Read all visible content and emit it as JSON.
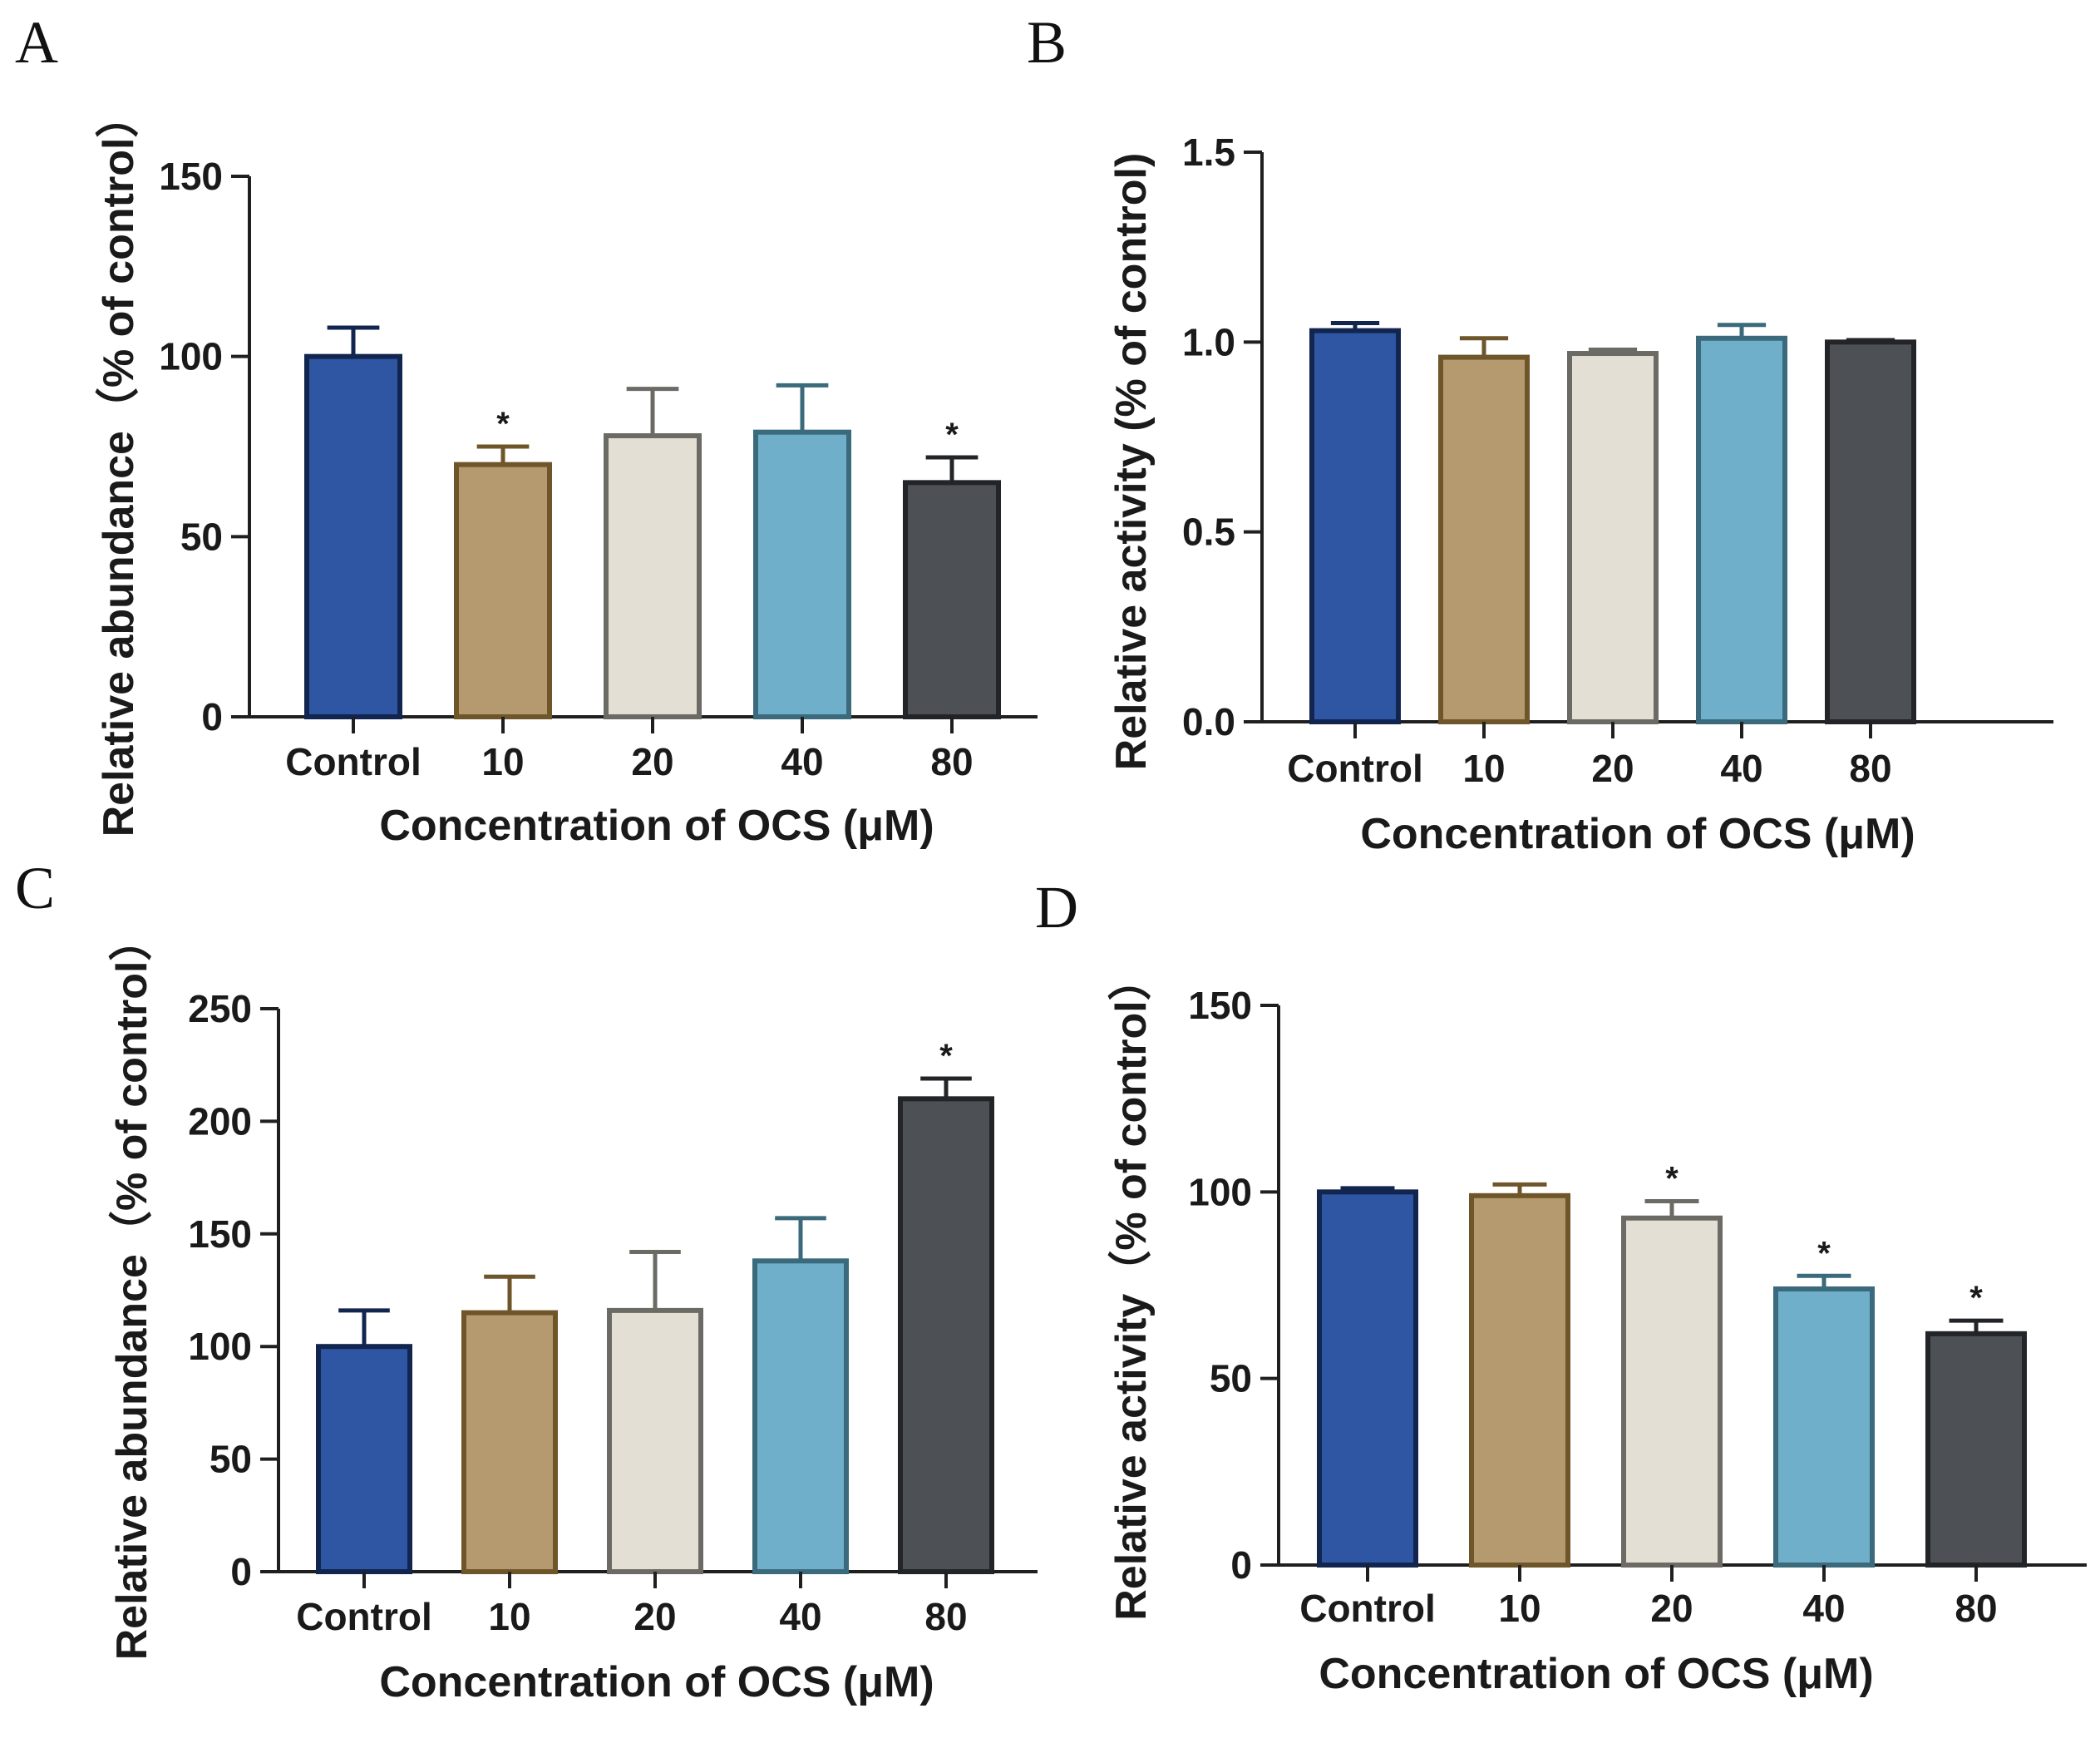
{
  "figure_colors": {
    "fills": [
      "#2f56a3",
      "#b59a6f",
      "#e3dfd5",
      "#6fafc9",
      "#4d5156"
    ],
    "strokes": [
      "#12254f",
      "#6e552a",
      "#6c6a64",
      "#3a6a7b",
      "#222427"
    ]
  },
  "chart_data": [
    {
      "panel": "A",
      "type": "bar",
      "categories": [
        "Control",
        "10",
        "20",
        "40",
        "80"
      ],
      "values": [
        100,
        70,
        78,
        79,
        65
      ],
      "errors": [
        8,
        5,
        13,
        13,
        7
      ],
      "significance": [
        "",
        "*",
        "",
        "",
        "*"
      ],
      "ylim": [
        0,
        150
      ],
      "yticks": [
        0,
        50,
        100,
        150
      ],
      "ytick_labels": [
        "0",
        "50",
        "100",
        "150"
      ],
      "xlabel": "Concentration of OCS (μM)",
      "ylabel": "Relative abundance（% of control）"
    },
    {
      "panel": "B",
      "type": "bar",
      "categories": [
        "Control",
        "10",
        "20",
        "40",
        "80"
      ],
      "values": [
        1.03,
        0.96,
        0.97,
        1.01,
        1.0
      ],
      "errors": [
        0.02,
        0.05,
        0.01,
        0.035,
        0.005
      ],
      "significance": [
        "",
        "",
        "",
        "",
        ""
      ],
      "ylim": [
        0,
        1.5
      ],
      "yticks": [
        0,
        0.5,
        1.0,
        1.5
      ],
      "ytick_labels": [
        "0.0",
        "0.5",
        "1.0",
        "1.5"
      ],
      "xlabel": "Concentration of OCS (μM)",
      "ylabel": "Relative activity (% of control)"
    },
    {
      "panel": "C",
      "type": "bar",
      "categories": [
        "Control",
        "10",
        "20",
        "40",
        "80"
      ],
      "values": [
        100,
        115,
        116,
        138,
        210
      ],
      "errors": [
        16,
        16,
        26,
        19,
        9
      ],
      "significance": [
        "",
        "",
        "",
        "",
        "*"
      ],
      "ylim": [
        0,
        250
      ],
      "yticks": [
        0,
        50,
        100,
        150,
        200,
        250
      ],
      "ytick_labels": [
        "0",
        "50",
        "100",
        "150",
        "200",
        "250"
      ],
      "xlabel": "Concentration of OCS (μM)",
      "ylabel": "Relative abundance（% of control）"
    },
    {
      "panel": "D",
      "type": "bar",
      "categories": [
        "Control",
        "10",
        "20",
        "40",
        "80"
      ],
      "values": [
        100,
        99,
        93,
        74,
        62
      ],
      "errors": [
        1,
        3,
        4.5,
        3.5,
        3.5
      ],
      "significance": [
        "",
        "",
        "*",
        "*",
        "*"
      ],
      "ylim": [
        0,
        150
      ],
      "yticks": [
        0,
        50,
        100,
        150
      ],
      "ytick_labels": [
        "0",
        "50",
        "100",
        "150"
      ],
      "xlabel": "Concentration of OCS (μM)",
      "ylabel": "Relative activity（% of control）"
    }
  ]
}
